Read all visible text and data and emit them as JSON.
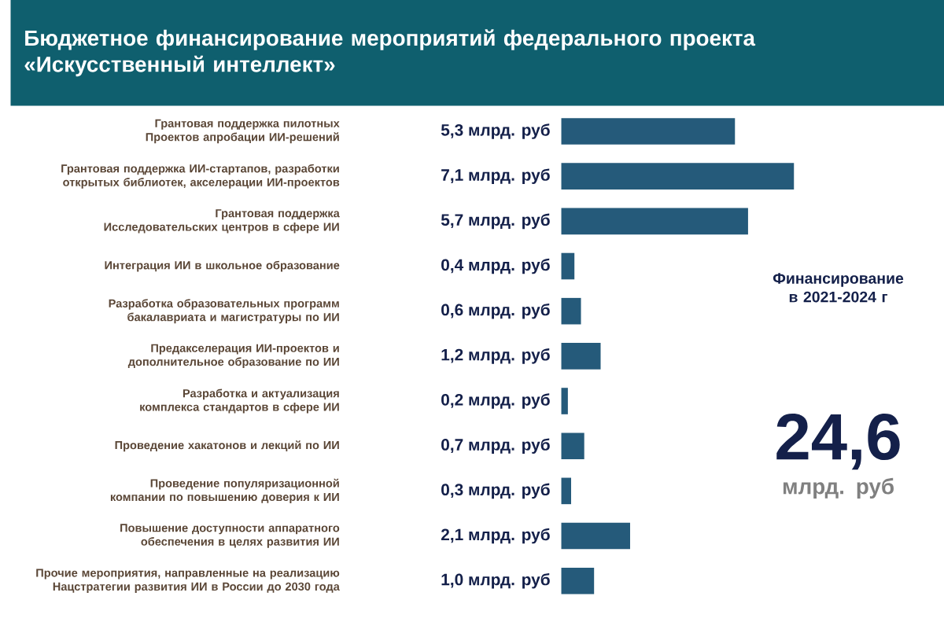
{
  "chart_data": {
    "type": "bar",
    "orientation": "horizontal",
    "title": "Бюджетное финансирование мероприятий федерального проекта «Искусственный интеллект»",
    "categories": [
      "Грантовая поддержка пилотных Проектов апробации ИИ-решений",
      "Грантовая поддержка ИИ-стартапов, разработки открытых библиотек, акселерации ИИ-проектов",
      "Грантовая поддержка Исследовательских центров в сфере ИИ",
      "Интеграция ИИ в школьное образование",
      "Разработка образовательных программ бакалавриата и магистратуры по ИИ",
      "Предакселерация ИИ-проектов и дополнительное образование по ИИ",
      "Разработка и актуализация комплекса стандартов в сфере ИИ",
      "Проведение хакатонов и лекций по ИИ",
      "Проведение популяризационной компании по повышению доверия к ИИ",
      "Повышение доступности аппаратного обеспечения в целях развития ИИ",
      "Прочие мероприятия, направленные на реализацию Нацстратегии развития ИИ в России до 2030 года"
    ],
    "values": [
      5.3,
      7.1,
      5.7,
      0.4,
      0.6,
      1.2,
      0.2,
      0.7,
      0.3,
      2.1,
      1.0
    ],
    "value_labels": [
      "5,3 млрд. руб",
      "7,1 млрд. руб",
      "5,7 млрд. руб",
      "0,4 млрд. руб",
      "0,6 млрд. руб",
      "1,2 млрд. руб",
      "0,2 млрд. руб",
      "0,7 млрд. руб",
      "0,3 млрд. руб",
      "2,1 млрд. руб",
      "1,0 млрд. руб"
    ],
    "color": "#255a7a",
    "annotations": [
      "Финансирование в 2021-2024 г",
      "24,6",
      "млрд. руб"
    ]
  }
}
